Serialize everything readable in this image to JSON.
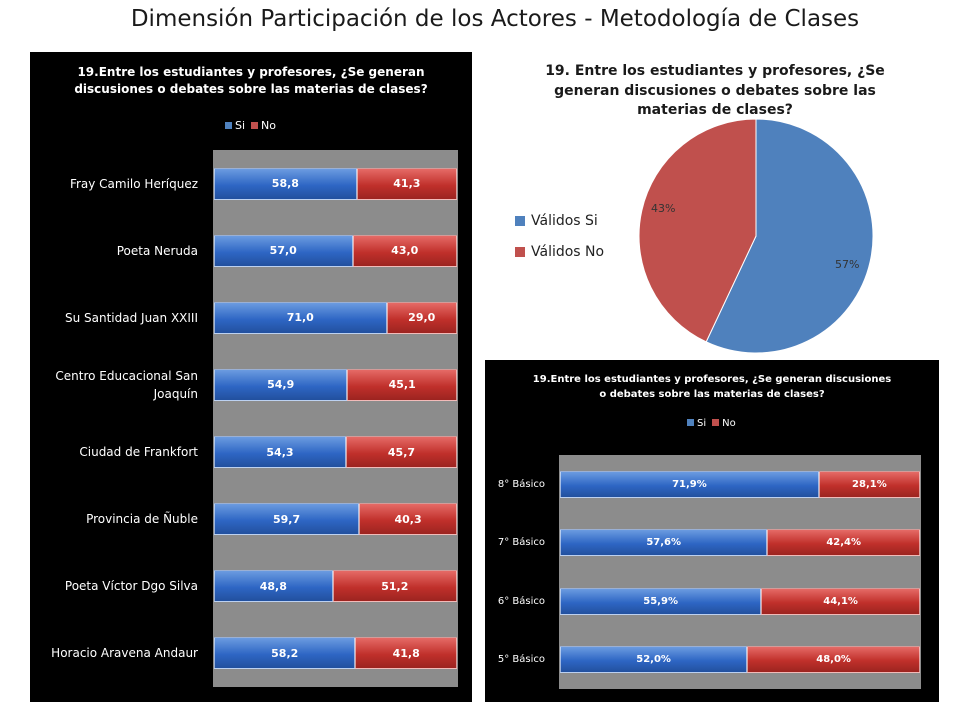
{
  "page_title": "Dimensión Participación de los Actores - Metodología de Clases",
  "colors": {
    "si": "#4f81bd",
    "no": "#c0504d"
  },
  "chart_data": [
    {
      "type": "bar",
      "stacked": true,
      "orientation": "horizontal",
      "title_lines": [
        "19.Entre los estudiantes y profesores, ¿Se generan",
        "discusiones o debates sobre las materias de clases?"
      ],
      "legend": [
        "Si",
        "No"
      ],
      "categories": [
        "Fray Camilo Heríquez",
        "Poeta Neruda",
        "Su Santidad Juan XXIII",
        "Centro Educacional San Joaquín",
        "Ciudad de Frankfort",
        "Provincia de Ñuble",
        "Poeta Víctor Dgo Silva",
        "Horacio Aravena Andaur"
      ],
      "series": [
        {
          "name": "Si",
          "values": [
            58.8,
            57.0,
            71.0,
            54.9,
            54.3,
            59.7,
            48.8,
            58.2
          ],
          "labels": [
            "58,8",
            "57,0",
            "71,0",
            "54,9",
            "54,3",
            "59,7",
            "48,8",
            "58,2"
          ]
        },
        {
          "name": "No",
          "values": [
            41.3,
            43.0,
            29.0,
            45.1,
            45.7,
            40.3,
            51.2,
            41.8
          ],
          "labels": [
            "41,3",
            "43,0",
            "29,0",
            "45,1",
            "45,7",
            "40,3",
            "51,2",
            "41,8"
          ]
        }
      ],
      "legend_position": "top"
    },
    {
      "type": "pie",
      "title_lines": [
        "19. Entre los estudiantes y profesores, ¿Se",
        "generan discusiones o debates sobre las",
        "materias de clases?"
      ],
      "categories": [
        "Válidos Si",
        "Válidos No"
      ],
      "values": [
        57,
        43
      ],
      "labels": [
        "57%",
        "43%"
      ],
      "legend_position": "left"
    },
    {
      "type": "bar",
      "stacked": true,
      "orientation": "horizontal",
      "title_lines": [
        "19.Entre los estudiantes y profesores, ¿Se generan discusiones",
        "o debates sobre las materias de clases?"
      ],
      "legend": [
        "Si",
        "No"
      ],
      "categories": [
        "8° Básico",
        "7° Básico",
        "6° Básico",
        "5° Básico"
      ],
      "series": [
        {
          "name": "Si",
          "values": [
            71.9,
            57.6,
            55.9,
            52.0
          ],
          "labels": [
            "71,9%",
            "57,6%",
            "55,9%",
            "52,0%"
          ]
        },
        {
          "name": "No",
          "values": [
            28.1,
            42.4,
            44.1,
            48.0
          ],
          "labels": [
            "28,1%",
            "42,4%",
            "44,1%",
            "48,0%"
          ]
        }
      ],
      "legend_position": "top"
    }
  ]
}
